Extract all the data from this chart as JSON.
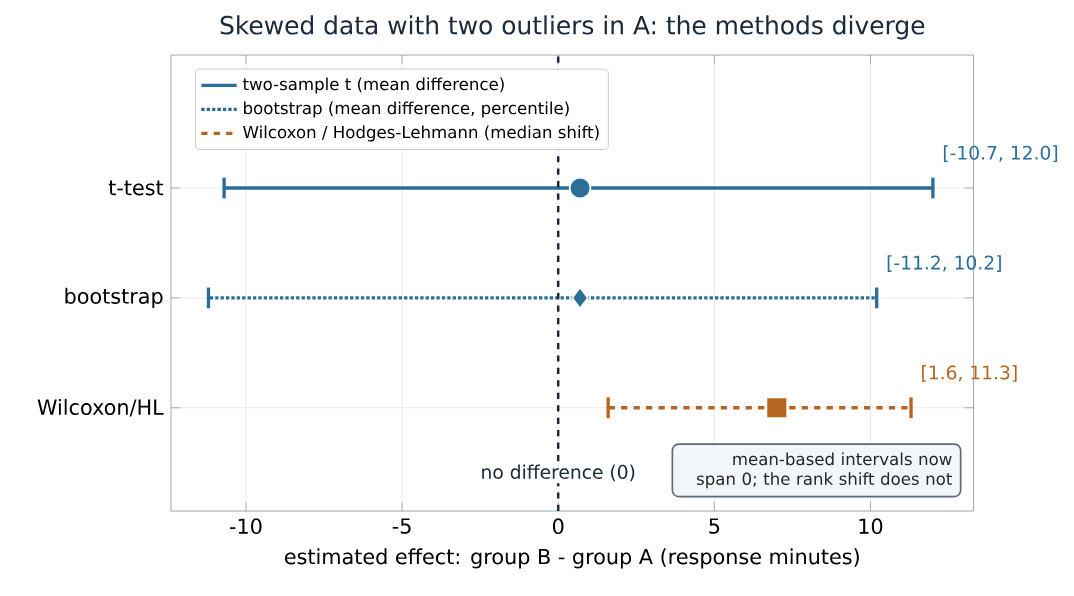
{
  "chart_data": {
    "type": "scatter",
    "orientation": "horizontal",
    "title": "Skewed data with two outliers in A: the methods diverge",
    "xlabel": "estimated effect: group B - group A  (response minutes)",
    "categories": [
      "t-test",
      "bootstrap",
      "Wilcoxon/HL"
    ],
    "series": [
      {
        "name": "two-sample t  (mean difference)",
        "color": "#2a6f97",
        "values": [
          0.7,
          null,
          null
        ],
        "errors": [
          [
            -10.7,
            12.0
          ],
          null,
          null
        ],
        "marker": "circle",
        "line_style": "solid"
      },
      {
        "name": "bootstrap  (mean difference, percentile)",
        "color": "#2a6f97",
        "values": [
          null,
          0.7,
          null
        ],
        "errors": [
          null,
          [
            -11.2,
            10.2
          ],
          null
        ],
        "marker": "diamond",
        "line_style": "dotted"
      },
      {
        "name": "Wilcoxon / Hodges-Lehmann  (median shift)",
        "color": "#b5651d",
        "values": [
          null,
          null,
          7.0
        ],
        "errors": [
          null,
          null,
          [
            1.6,
            11.3
          ]
        ],
        "marker": "square",
        "line_style": "dashed"
      }
    ],
    "xlim": [
      -12.4,
      13.3
    ],
    "xticks": [
      -10,
      -5,
      0,
      5,
      10
    ],
    "grid": true,
    "legend": "top left",
    "ref_lines": [
      {
        "axis": "x",
        "value": 0,
        "label": "no difference (0)",
        "color": "#1b2a3a",
        "line_style": "dashed"
      }
    ],
    "annotations": [
      "[-10.7, 12.0]",
      "[-11.2, 10.2]",
      "[1.6, 11.3]",
      "mean-based intervals now span 0; the rank shift does not"
    ]
  }
}
